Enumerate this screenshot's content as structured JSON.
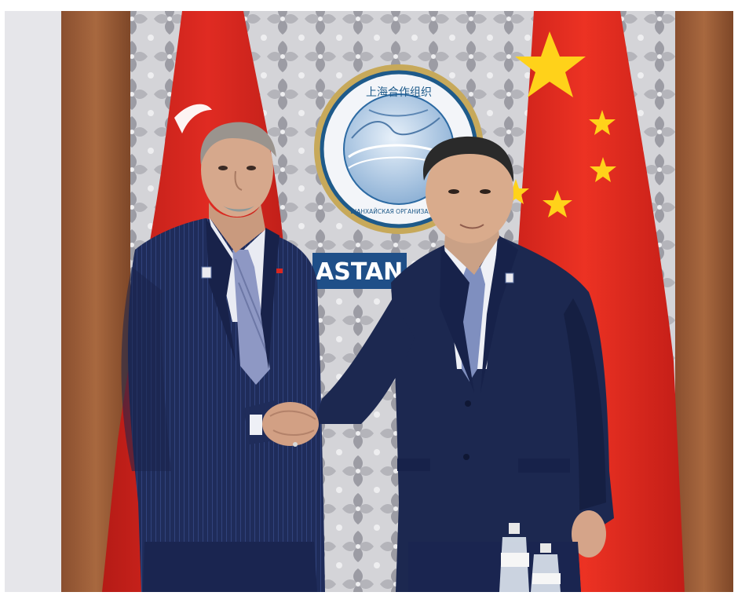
{
  "photo": {
    "emblem_text_top": "上海合作组织",
    "emblem_text_bottom": "ШАНХАЙСКАЯ ОРГАНИЗАЦИЯ С",
    "backdrop_sign": "ASTAN"
  },
  "colors": {
    "page_bg": "#ffffff",
    "wall_lattice": "#c9c9cd",
    "wall_pattern": "#8a8a92",
    "wood_frame": "#a0623e",
    "flag_red": "#d8261f",
    "flag_yellow": "#ffd21a",
    "emblem_ring": "#1e5a8a",
    "sign_blue": "#1f4f88",
    "suit_navy_left": "#1f2c5a",
    "suit_navy_right": "#1c2850",
    "tie_blue": "#7f8fbf",
    "shirt": "#eef0f6",
    "skin": "#d6a88c",
    "hair_grey": "#9a948e",
    "hair_dark": "#2a2a2a"
  },
  "icons": [
    "lapel-pin-icon",
    "flag-pin-icon",
    "water-bottle-icon"
  ]
}
